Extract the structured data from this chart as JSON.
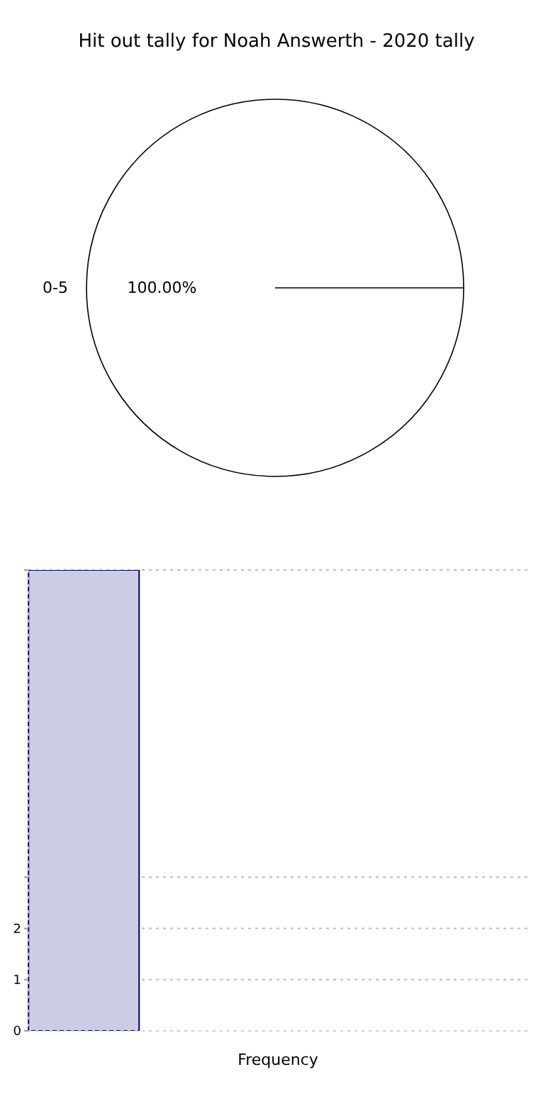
{
  "chart_data": [
    {
      "type": "pie",
      "title": "Hit out tally for Noah Answerth - 2020 tally",
      "categories": [
        "0-5"
      ],
      "values": [
        100
      ],
      "colors": [
        "#ffffff"
      ],
      "value_labels": [
        "100.00%"
      ]
    },
    {
      "type": "bar",
      "categories": [
        null
      ],
      "values": [
        9
      ],
      "color": "#cccce5",
      "xlabel": "Frequency",
      "ylim": [
        0,
        9
      ],
      "yticks": [
        0,
        1,
        2,
        {
          "value": 3,
          "label": null
        },
        {
          "value": 9,
          "label": null
        }
      ],
      "grid": "y"
    }
  ]
}
